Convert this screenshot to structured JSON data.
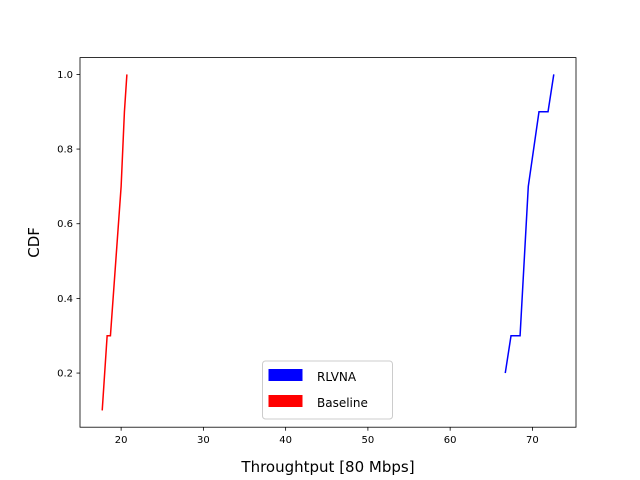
{
  "chart_data": {
    "type": "line",
    "title": "",
    "xlabel": "Throughtput [80 Mbps]",
    "ylabel": "CDF",
    "xlim": [
      15,
      75.3
    ],
    "ylim": [
      0.055,
      1.045
    ],
    "xticks": [
      20,
      30,
      40,
      50,
      60,
      70
    ],
    "yticks": [
      0.2,
      0.4,
      0.6,
      0.8,
      1.0
    ],
    "ytick_labels": [
      "0.2",
      "0.4",
      "0.6",
      "0.8",
      "1.0"
    ],
    "grid": false,
    "legend_position": "bottom-center",
    "series": [
      {
        "name": "RLVNA",
        "color": "#0000ff",
        "x": [
          66.7,
          67.4,
          68.5,
          69.5,
          70.8,
          71.9,
          72.6
        ],
        "y": [
          0.2,
          0.3,
          0.3,
          0.7,
          0.9,
          0.9,
          1.0
        ]
      },
      {
        "name": "Baseline",
        "color": "#ff0000",
        "x": [
          17.7,
          18.3,
          18.7,
          20.0,
          20.4,
          20.7
        ],
        "y": [
          0.1,
          0.3,
          0.3,
          0.7,
          0.9,
          1.0
        ]
      }
    ]
  }
}
